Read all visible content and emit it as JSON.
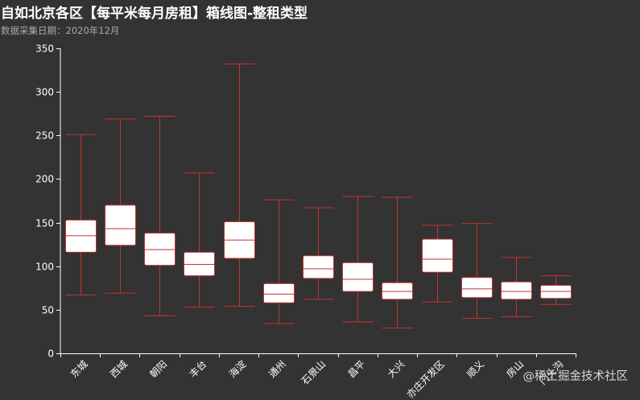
{
  "title": "自如北京各区【每平米每月房租】箱线图-整租类型",
  "subtitle": "数据采集日期：2020年12月",
  "watermark": "@稀土掘金技术社区",
  "chart_data": {
    "type": "boxplot",
    "title": "自如北京各区【每平米每月房租】箱线图-整租类型",
    "subtitle": "数据采集日期：2020年12月",
    "categories": [
      "东城",
      "西城",
      "朝阳",
      "丰台",
      "海淀",
      "通州",
      "石景山",
      "昌平",
      "大兴",
      "亦庄开发区",
      "顺义",
      "房山",
      "门头沟"
    ],
    "boxes": [
      {
        "min": 67,
        "q1": 116,
        "median": 135,
        "q3": 153,
        "max": 251
      },
      {
        "min": 69,
        "q1": 124,
        "median": 143,
        "q3": 170,
        "max": 269
      },
      {
        "min": 43,
        "q1": 101,
        "median": 119,
        "q3": 138,
        "max": 272
      },
      {
        "min": 53,
        "q1": 89,
        "median": 102,
        "q3": 116,
        "max": 207
      },
      {
        "min": 54,
        "q1": 109,
        "median": 130,
        "q3": 151,
        "max": 332
      },
      {
        "min": 34,
        "q1": 58,
        "median": 68,
        "q3": 80,
        "max": 176
      },
      {
        "min": 62,
        "q1": 86,
        "median": 97,
        "q3": 112,
        "max": 167
      },
      {
        "min": 36,
        "q1": 71,
        "median": 85,
        "q3": 104,
        "max": 180
      },
      {
        "min": 29,
        "q1": 62,
        "median": 71,
        "q3": 81,
        "max": 179
      },
      {
        "min": 59,
        "q1": 93,
        "median": 108,
        "q3": 131,
        "max": 147
      },
      {
        "min": 40,
        "q1": 64,
        "median": 74,
        "q3": 87,
        "max": 149
      },
      {
        "min": 42,
        "q1": 62,
        "median": 71,
        "q3": 82,
        "max": 110
      },
      {
        "min": 56,
        "q1": 63,
        "median": 71,
        "q3": 78,
        "max": 89
      }
    ],
    "yticks": [
      0,
      50,
      100,
      150,
      200,
      250,
      300,
      350
    ],
    "ylim": [
      0,
      350
    ],
    "xlabel": "",
    "ylabel": "",
    "grid": false,
    "colors": {
      "background": "#333333",
      "box_fill": "#ffffff",
      "box_stroke": "#c23531",
      "axis": "#ffffff",
      "text": "#ffffff",
      "subtitle": "#aaaaaa"
    }
  }
}
